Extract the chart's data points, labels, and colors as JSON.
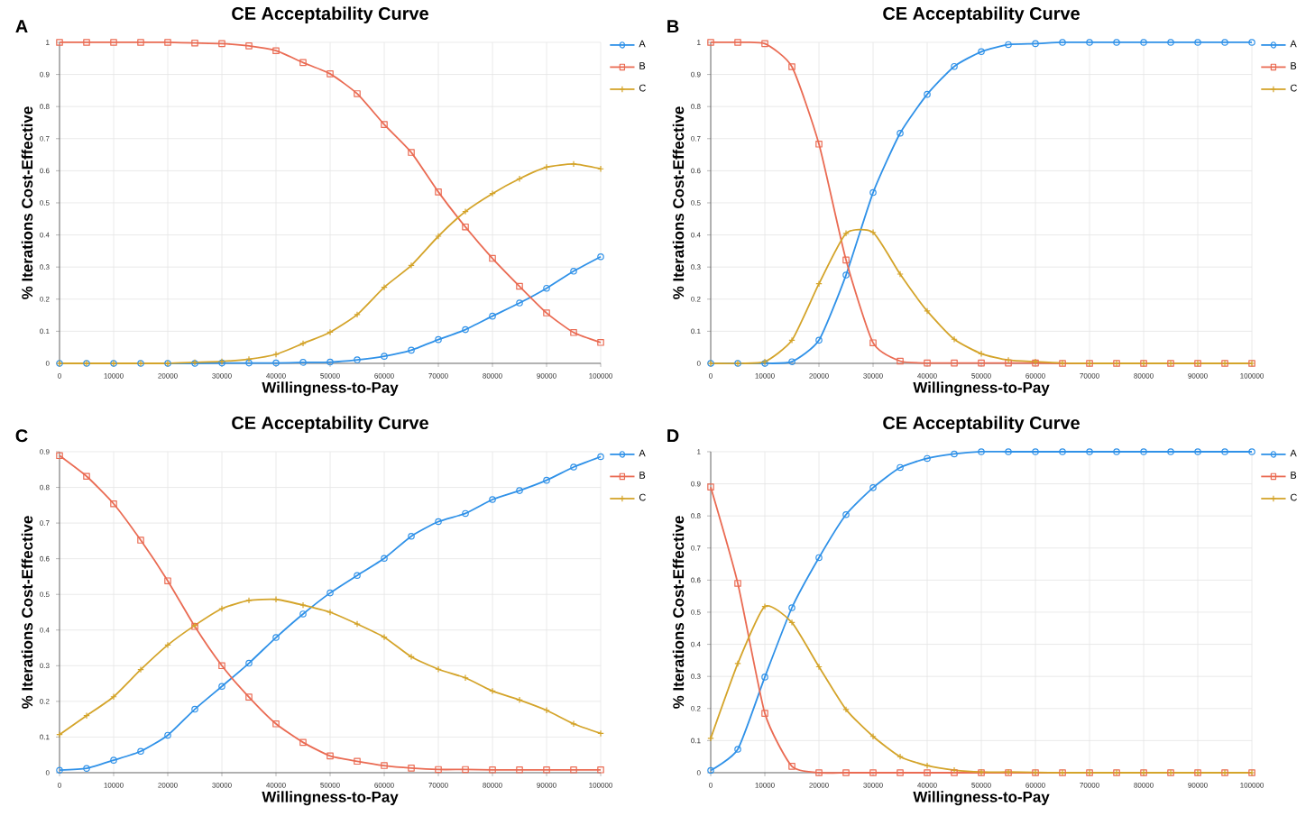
{
  "chart_data": [
    {
      "type": "line",
      "title": "CE  Acceptability Curve",
      "xlabel": "Willingness-to-Pay",
      "ylabel": "%  Iterations Cost-Effective",
      "annotations": [
        "A"
      ],
      "x": [
        0,
        5000,
        10000,
        15000,
        20000,
        25000,
        30000,
        35000,
        40000,
        45000,
        50000,
        55000,
        60000,
        65000,
        70000,
        75000,
        80000,
        85000,
        90000,
        95000,
        100000
      ],
      "series": [
        {
          "name": "A",
          "color": "#2f91e8",
          "marker": "circle",
          "values": [
            0,
            0,
            0,
            0,
            0,
            0,
            0.001,
            0.001,
            0.001,
            0.003,
            0.004,
            0.011,
            0.022,
            0.041,
            0.074,
            0.105,
            0.147,
            0.188,
            0.234,
            0.287,
            0.332
          ]
        },
        {
          "name": "B",
          "color": "#ea6b53",
          "marker": "square",
          "values": [
            1,
            1,
            1,
            1,
            1,
            0.998,
            0.996,
            0.989,
            0.974,
            0.937,
            0.902,
            0.84,
            0.744,
            0.657,
            0.534,
            0.425,
            0.327,
            0.24,
            0.157,
            0.096,
            0.065
          ]
        },
        {
          "name": "C",
          "color": "#d4a42a",
          "marker": "cross",
          "values": [
            0,
            0,
            0,
            0,
            0,
            0.003,
            0.006,
            0.013,
            0.028,
            0.062,
            0.097,
            0.152,
            0.237,
            0.305,
            0.396,
            0.473,
            0.529,
            0.575,
            0.611,
            0.621,
            0.606
          ]
        }
      ],
      "xlim": [
        0,
        100000
      ],
      "xticks": [
        0,
        10000,
        20000,
        30000,
        40000,
        50000,
        60000,
        70000,
        80000,
        90000,
        100000
      ],
      "ylim": [
        0,
        1
      ],
      "yticks": [
        0,
        0.1,
        0.2,
        0.3,
        0.4,
        0.5,
        0.6,
        0.7,
        0.8,
        0.9,
        1
      ],
      "grid": true,
      "legend": "top right",
      "line_style": "solid"
    },
    {
      "type": "line",
      "title": "CE  Acceptability Curve",
      "xlabel": "Willingness-to-Pay",
      "ylabel": "%  Iterations Cost-Effective",
      "annotations": [
        "B"
      ],
      "x": [
        0,
        5000,
        10000,
        15000,
        20000,
        25000,
        30000,
        35000,
        40000,
        45000,
        50000,
        55000,
        60000,
        65000,
        70000,
        75000,
        80000,
        85000,
        90000,
        95000,
        100000
      ],
      "series": [
        {
          "name": "A",
          "color": "#2f91e8",
          "marker": "circle",
          "values": [
            0,
            0,
            0,
            0.005,
            0.072,
            0.275,
            0.532,
            0.717,
            0.838,
            0.925,
            0.971,
            0.993,
            0.996,
            1,
            1,
            1,
            1,
            1,
            1,
            1,
            1
          ]
        },
        {
          "name": "B",
          "color": "#ea6b53",
          "marker": "square",
          "values": [
            1,
            1,
            0.996,
            0.924,
            0.683,
            0.322,
            0.064,
            0.007,
            0.001,
            0.001,
            0.001,
            0.001,
            0.001,
            0,
            0,
            0,
            0,
            0,
            0,
            0,
            0
          ]
        },
        {
          "name": "C",
          "color": "#d4a42a",
          "marker": "cross",
          "values": [
            0,
            0,
            0.005,
            0.072,
            0.248,
            0.405,
            0.408,
            0.278,
            0.163,
            0.075,
            0.03,
            0.01,
            0.005,
            0.001,
            0,
            0,
            0,
            0,
            0,
            0,
            0
          ]
        }
      ],
      "xlim": [
        0,
        100000
      ],
      "xticks": [
        0,
        10000,
        20000,
        30000,
        40000,
        50000,
        60000,
        70000,
        80000,
        90000,
        100000
      ],
      "ylim": [
        0,
        1
      ],
      "yticks": [
        0,
        0.1,
        0.2,
        0.3,
        0.4,
        0.5,
        0.6,
        0.7,
        0.8,
        0.9,
        1
      ],
      "grid": true,
      "legend": "top right",
      "line_style": "solid"
    },
    {
      "type": "line",
      "title": "CE  Acceptability Curve",
      "xlabel": "Willingness-to-Pay",
      "ylabel": "%  Iterations Cost-Effective",
      "annotations": [
        "C"
      ],
      "x": [
        0,
        5000,
        10000,
        15000,
        20000,
        25000,
        30000,
        35000,
        40000,
        45000,
        50000,
        55000,
        60000,
        65000,
        70000,
        75000,
        80000,
        85000,
        90000,
        95000,
        100000
      ],
      "series": [
        {
          "name": "A",
          "color": "#2f91e8",
          "marker": "circle",
          "values": [
            0.007,
            0.012,
            0.035,
            0.06,
            0.105,
            0.178,
            0.242,
            0.307,
            0.379,
            0.445,
            0.504,
            0.553,
            0.601,
            0.663,
            0.704,
            0.727,
            0.766,
            0.791,
            0.82,
            0.857,
            0.886
          ]
        },
        {
          "name": "B",
          "color": "#ea6b53",
          "marker": "square",
          "values": [
            0.889,
            0.831,
            0.754,
            0.652,
            0.538,
            0.41,
            0.3,
            0.212,
            0.137,
            0.085,
            0.047,
            0.032,
            0.02,
            0.013,
            0.009,
            0.009,
            0.008,
            0.008,
            0.008,
            0.008,
            0.008
          ]
        },
        {
          "name": "C",
          "color": "#d4a42a",
          "marker": "cross",
          "values": [
            0.107,
            0.16,
            0.213,
            0.289,
            0.358,
            0.413,
            0.46,
            0.483,
            0.486,
            0.47,
            0.45,
            0.417,
            0.38,
            0.325,
            0.29,
            0.266,
            0.229,
            0.204,
            0.175,
            0.137,
            0.11
          ]
        }
      ],
      "xlim": [
        0,
        100000
      ],
      "xticks": [
        0,
        10000,
        20000,
        30000,
        40000,
        50000,
        60000,
        70000,
        80000,
        90000,
        100000
      ],
      "ylim": [
        0,
        0.9
      ],
      "yticks": [
        0,
        0.1,
        0.2,
        0.3,
        0.4,
        0.5,
        0.6,
        0.7,
        0.8,
        0.9
      ],
      "grid": true,
      "legend": "top right",
      "line_style": "solid"
    },
    {
      "type": "line",
      "title": "CE  Acceptability Curve",
      "xlabel": "Willingness-to-Pay",
      "ylabel": "%  Iterations Cost-Effective",
      "annotations": [
        "D"
      ],
      "x": [
        0,
        5000,
        10000,
        15000,
        20000,
        25000,
        30000,
        35000,
        40000,
        45000,
        50000,
        55000,
        60000,
        65000,
        70000,
        75000,
        80000,
        85000,
        90000,
        95000,
        100000
      ],
      "series": [
        {
          "name": "A",
          "color": "#2f91e8",
          "marker": "circle",
          "values": [
            0.007,
            0.073,
            0.298,
            0.514,
            0.67,
            0.804,
            0.888,
            0.951,
            0.979,
            0.993,
            1,
            1,
            1,
            1,
            1,
            1,
            1,
            1,
            1,
            1,
            1
          ]
        },
        {
          "name": "B",
          "color": "#ea6b53",
          "marker": "square",
          "values": [
            0.89,
            0.59,
            0.185,
            0.02,
            0,
            0,
            0,
            0,
            0,
            0,
            0,
            0,
            0,
            0,
            0,
            0,
            0,
            0,
            0,
            0,
            0
          ]
        },
        {
          "name": "C",
          "color": "#d4a42a",
          "marker": "cross",
          "values": [
            0.107,
            0.34,
            0.518,
            0.468,
            0.33,
            0.197,
            0.113,
            0.05,
            0.022,
            0.008,
            0.002,
            0.002,
            0.001,
            0,
            0,
            0,
            0,
            0,
            0,
            0,
            0
          ]
        }
      ],
      "xlim": [
        0,
        100000
      ],
      "xticks": [
        0,
        10000,
        20000,
        30000,
        40000,
        50000,
        60000,
        70000,
        80000,
        90000,
        100000
      ],
      "ylim": [
        0,
        1
      ],
      "yticks": [
        0,
        0.1,
        0.2,
        0.3,
        0.4,
        0.5,
        0.6,
        0.7,
        0.8,
        0.9,
        1
      ],
      "grid": true,
      "legend": "top right",
      "line_style": "solid"
    }
  ]
}
